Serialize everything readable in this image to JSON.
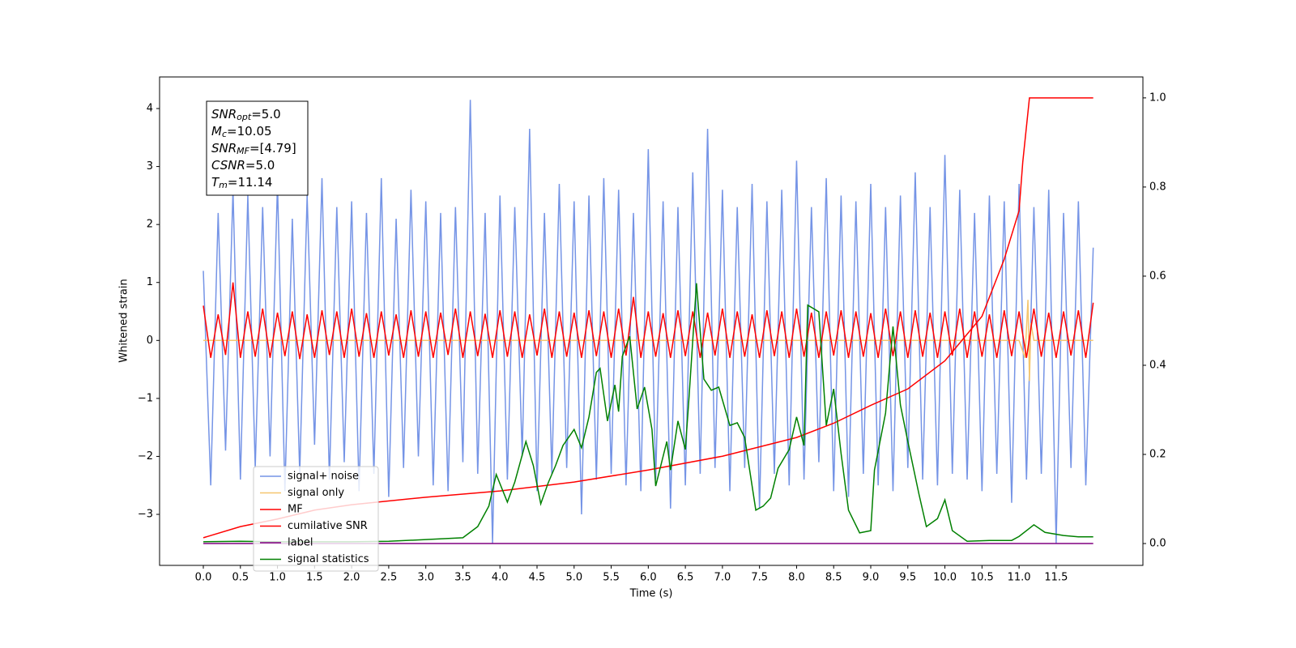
{
  "chart_data": {
    "type": "line",
    "x_label": "Time (s)",
    "y_label": "Whitened strain",
    "xlim": [
      -0.59,
      12.67
    ],
    "ylim": [
      -3.88,
      4.545
    ],
    "y2lim": [
      -0.049,
      1.047
    ],
    "xticks": [
      {
        "value": 0,
        "label": "0.0"
      },
      0.5,
      {
        "value": 1,
        "label": "1.0"
      },
      1.5,
      {
        "value": 2,
        "label": "2.0"
      },
      2.5,
      {
        "value": 3,
        "label": "3.0"
      },
      3.5,
      {
        "value": 4,
        "label": "4.0"
      },
      4.5,
      {
        "value": 5,
        "label": "5.0"
      },
      5.5,
      {
        "value": 6,
        "label": "6.0"
      },
      6.5,
      {
        "value": 7,
        "label": "7.0"
      },
      7.5,
      {
        "value": 8,
        "label": "8.0"
      },
      8.5,
      {
        "value": 9,
        "label": "9.0"
      },
      9.5,
      {
        "value": 10,
        "label": "10.0"
      },
      10.5,
      {
        "value": 11,
        "label": "11.0"
      },
      11.5
    ],
    "yticks": [
      {
        "value": -3,
        "label": "−3"
      },
      {
        "value": -2,
        "label": "−2"
      },
      {
        "value": -1,
        "label": "−1"
      },
      0,
      1,
      2,
      3,
      4
    ],
    "y2ticks": [
      {
        "value": 0,
        "label": "0.0"
      },
      0.2,
      0.4,
      0.6,
      0.8,
      {
        "value": 1,
        "label": "1.0"
      }
    ],
    "grid": false,
    "legend_loc": "lower left",
    "annotations": [
      {
        "var": "SNR",
        "sub": "opt",
        "text": "=5.0"
      },
      {
        "var": "M",
        "sub": "c",
        "text": "=10.05"
      },
      {
        "var": "SNR",
        "sub": "MF",
        "text": "=[4.79]"
      },
      {
        "var": "CSNR",
        "text": "=5.0"
      },
      {
        "var": "T",
        "sub": "m",
        "text": "=11.14"
      }
    ],
    "x": [
      0,
      0.1,
      0.2,
      0.3,
      0.4,
      0.5,
      0.6,
      0.7,
      0.8,
      0.9,
      1,
      1.1,
      1.2,
      1.3,
      1.4,
      1.5,
      1.6,
      1.7,
      1.8,
      1.9,
      2,
      2.1,
      2.2,
      2.3,
      2.4,
      2.5,
      2.6,
      2.7,
      2.8,
      2.9,
      3,
      3.1,
      3.2,
      3.3,
      3.4,
      3.5,
      3.6,
      3.7,
      3.8,
      3.9,
      4,
      4.1,
      4.2,
      4.3,
      4.4,
      4.5,
      4.6,
      4.7,
      4.8,
      4.9,
      5,
      5.1,
      5.2,
      5.3,
      5.4,
      5.5,
      5.6,
      5.7,
      5.8,
      5.9,
      6,
      6.1,
      6.2,
      6.3,
      6.4,
      6.5,
      6.6,
      6.7,
      6.8,
      6.9,
      7,
      7.1,
      7.2,
      7.3,
      7.4,
      7.5,
      7.6,
      7.7,
      7.8,
      7.9,
      8,
      8.1,
      8.2,
      8.3,
      8.4,
      8.5,
      8.6,
      8.7,
      8.8,
      8.9,
      9,
      9.1,
      9.2,
      9.3,
      9.4,
      9.5,
      9.6,
      9.7,
      9.8,
      9.9,
      10,
      10.1,
      10.2,
      10.3,
      10.4,
      10.5,
      10.6,
      10.7,
      10.8,
      10.9,
      11,
      11.1,
      11.2,
      11.3,
      11.4,
      11.5,
      11.6,
      11.7,
      11.8,
      11.9,
      12
    ],
    "series": [
      {
        "name": "signal+ noise",
        "color": "#7594e6",
        "axis": "y",
        "values": [
          1.2,
          -2.5,
          2.2,
          -1.9,
          2.6,
          -2.4,
          2.5,
          -2.2,
          2.3,
          -2.0,
          2.7,
          -2.6,
          2.1,
          -2.3,
          2.5,
          -1.8,
          2.8,
          -2.4,
          2.3,
          -2.1,
          2.4,
          -2.6,
          2.2,
          -2.3,
          2.8,
          -2.7,
          2.1,
          -2.2,
          2.6,
          -2.0,
          2.4,
          -2.5,
          2.2,
          -2.6,
          2.3,
          -2.1,
          4.15,
          -2.3,
          2.2,
          -3.5,
          2.5,
          -2.4,
          2.3,
          -2.0,
          3.65,
          -2.6,
          2.2,
          -2.3,
          2.7,
          -2.2,
          2.4,
          -3.0,
          2.5,
          -2.4,
          2.8,
          -2.3,
          2.6,
          -2.5,
          2.2,
          -2.6,
          3.3,
          -2.4,
          2.4,
          -2.9,
          2.3,
          -2.5,
          2.9,
          -2.3,
          3.65,
          -2.2,
          2.6,
          -2.6,
          2.3,
          -2.2,
          2.7,
          -2.9,
          2.4,
          -2.3,
          2.6,
          -2.5,
          3.1,
          -2.4,
          2.3,
          -2.1,
          2.8,
          -2.6,
          2.5,
          -2.7,
          2.4,
          -2.3,
          2.7,
          -2.5,
          2.3,
          -2.6,
          2.5,
          -2.2,
          2.9,
          -2.4,
          2.3,
          -2.5,
          3.2,
          -2.3,
          2.6,
          -2.4,
          2.2,
          -2.6,
          2.5,
          -2.3,
          2.4,
          -2.8,
          2.7,
          -2.4,
          2.3,
          -2.3,
          2.6,
          -3.5,
          2.2,
          -2.2,
          2.4,
          -2.5,
          1.6
        ]
      },
      {
        "name": "signal only",
        "color": "#f5c66f",
        "axis": "y",
        "x": [
          0,
          11.0,
          11.08,
          11.12,
          11.14,
          11.16,
          11.2,
          12
        ],
        "values": [
          0,
          0,
          -0.3,
          0.7,
          -0.7,
          0.3,
          0,
          0
        ]
      },
      {
        "name": "MF",
        "color": "#ff0000",
        "axis": "y",
        "values": [
          0.6,
          -0.3,
          0.45,
          -0.25,
          1.0,
          -0.3,
          0.5,
          -0.28,
          0.55,
          -0.3,
          0.48,
          -0.27,
          0.5,
          -0.32,
          0.45,
          -0.3,
          0.52,
          -0.25,
          0.5,
          -0.3,
          0.55,
          -0.28,
          0.47,
          -0.3,
          0.5,
          -0.26,
          0.45,
          -0.3,
          0.52,
          -0.28,
          0.5,
          -0.3,
          0.48,
          -0.25,
          0.55,
          -0.3,
          0.5,
          -0.27,
          0.46,
          -0.3,
          0.52,
          -0.28,
          0.5,
          -0.3,
          0.45,
          -0.26,
          0.55,
          -0.3,
          0.5,
          -0.28,
          0.48,
          -0.3,
          0.52,
          -0.27,
          0.5,
          -0.3,
          0.55,
          -0.26,
          0.75,
          -0.3,
          0.5,
          -0.28,
          0.47,
          -0.3,
          0.52,
          -0.27,
          0.5,
          -0.3,
          0.48,
          -0.26,
          0.55,
          -0.3,
          0.5,
          -0.28,
          0.45,
          -0.3,
          0.52,
          -0.27,
          0.5,
          -0.3,
          0.55,
          -0.28,
          0.48,
          -0.3,
          0.5,
          -0.26,
          0.52,
          -0.3,
          0.5,
          -0.28,
          0.47,
          -0.3,
          0.55,
          -0.27,
          0.5,
          -0.3,
          0.52,
          -0.28,
          0.48,
          -0.3,
          0.5,
          -0.26,
          0.55,
          -0.3,
          0.5,
          -0.28,
          0.45,
          -0.3,
          0.52,
          -0.27,
          0.5,
          -0.3,
          0.55,
          -0.28,
          0.48,
          -0.3,
          0.5,
          -0.26,
          0.52,
          -0.3,
          0.65
        ]
      },
      {
        "name": "cumilative SNR",
        "color": "#ff0000",
        "axis": "y2",
        "x": [
          0,
          0.5,
          1,
          1.5,
          2,
          3,
          4,
          5,
          6,
          7,
          8,
          8.5,
          9,
          9.5,
          10,
          10.5,
          10.8,
          11,
          11.05,
          11.14,
          12
        ],
        "values": [
          0.013,
          0.038,
          0.055,
          0.075,
          0.087,
          0.104,
          0.118,
          0.138,
          0.165,
          0.196,
          0.238,
          0.27,
          0.31,
          0.347,
          0.41,
          0.51,
          0.638,
          0.747,
          0.856,
          1.0,
          1.0
        ]
      },
      {
        "name": "label",
        "color": "#800080",
        "axis": "y2",
        "x": [
          0,
          12
        ],
        "values": [
          0,
          0
        ]
      },
      {
        "name": "signal statistics",
        "color": "#008000",
        "axis": "y2",
        "x": [
          0,
          0.5,
          1,
          2,
          2.5,
          3,
          3.5,
          3.7,
          3.85,
          3.95,
          4.1,
          4.2,
          4.35,
          4.45,
          4.55,
          4.65,
          4.75,
          4.85,
          5,
          5.1,
          5.2,
          5.3,
          5.35,
          5.45,
          5.55,
          5.6,
          5.65,
          5.75,
          5.85,
          5.95,
          6.05,
          6.1,
          6.25,
          6.3,
          6.4,
          6.5,
          6.55,
          6.65,
          6.75,
          6.85,
          6.95,
          7.1,
          7.2,
          7.3,
          7.45,
          7.55,
          7.65,
          7.75,
          7.9,
          8,
          8.1,
          8.15,
          8.3,
          8.4,
          8.5,
          8.6,
          8.7,
          8.85,
          9,
          9.05,
          9.2,
          9.3,
          9.4,
          9.5,
          9.65,
          9.75,
          9.9,
          10,
          10.1,
          10.3,
          10.6,
          10.9,
          11,
          11.2,
          11.35,
          11.6,
          11.8,
          12
        ],
        "values": [
          0.004,
          0.005,
          0.004,
          0.004,
          0.005,
          0.009,
          0.013,
          0.038,
          0.084,
          0.155,
          0.093,
          0.138,
          0.229,
          0.175,
          0.089,
          0.136,
          0.175,
          0.22,
          0.256,
          0.215,
          0.284,
          0.384,
          0.393,
          0.275,
          0.356,
          0.296,
          0.42,
          0.465,
          0.302,
          0.351,
          0.256,
          0.129,
          0.229,
          0.165,
          0.275,
          0.211,
          0.329,
          0.584,
          0.369,
          0.344,
          0.351,
          0.265,
          0.271,
          0.238,
          0.075,
          0.084,
          0.102,
          0.169,
          0.211,
          0.284,
          0.22,
          0.535,
          0.52,
          0.265,
          0.347,
          0.202,
          0.075,
          0.024,
          0.029,
          0.165,
          0.293,
          0.487,
          0.311,
          0.229,
          0.111,
          0.038,
          0.056,
          0.098,
          0.029,
          0.005,
          0.007,
          0.007,
          0.016,
          0.042,
          0.025,
          0.018,
          0.015,
          0.015
        ]
      }
    ]
  }
}
